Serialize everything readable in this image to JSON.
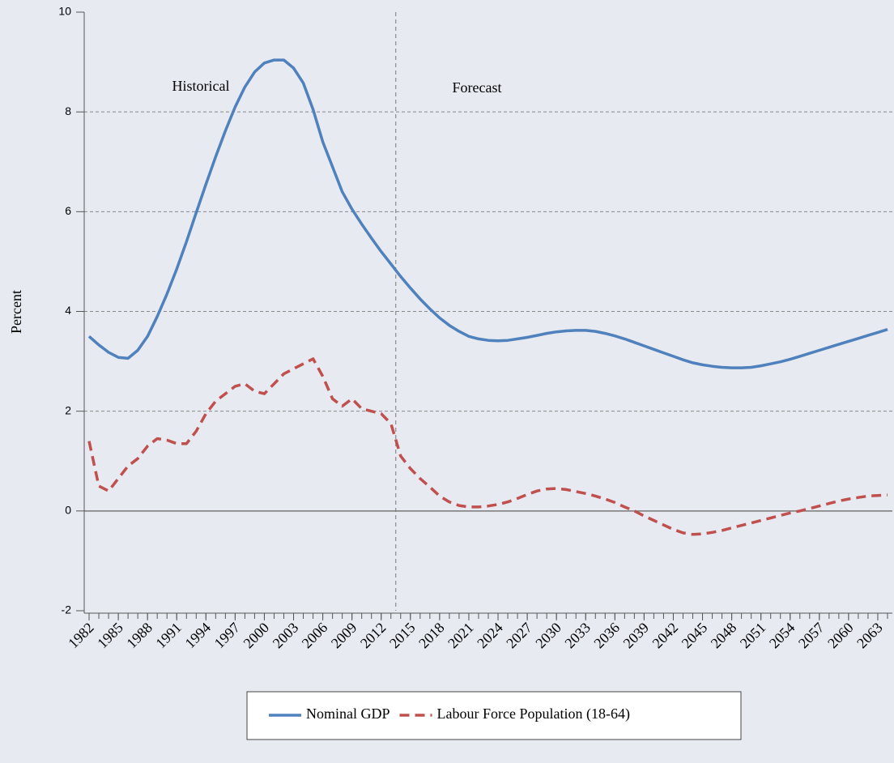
{
  "chart_data": {
    "type": "line",
    "y_label": "Percent",
    "annotations": [
      "Historical",
      "Forecast"
    ],
    "forecast_divider": 2013.5,
    "x": [
      1982,
      1983,
      1984,
      1985,
      1986,
      1987,
      1988,
      1989,
      1990,
      1991,
      1992,
      1993,
      1994,
      1995,
      1996,
      1997,
      1998,
      1999,
      2000,
      2001,
      2002,
      2003,
      2004,
      2005,
      2006,
      2007,
      2008,
      2009,
      2010,
      2011,
      2012,
      2013,
      2014,
      2015,
      2016,
      2017,
      2018,
      2019,
      2020,
      2021,
      2022,
      2023,
      2024,
      2025,
      2026,
      2027,
      2028,
      2029,
      2030,
      2031,
      2032,
      2033,
      2034,
      2035,
      2036,
      2037,
      2038,
      2039,
      2040,
      2041,
      2042,
      2043,
      2044,
      2045,
      2046,
      2047,
      2048,
      2049,
      2050,
      2051,
      2052,
      2053,
      2054,
      2055,
      2056,
      2057,
      2058,
      2059,
      2060,
      2061,
      2062,
      2063,
      2064
    ],
    "series": [
      {
        "name": "Nominal GDP",
        "color": "#4f81bd",
        "dash": false,
        "values": [
          3.5,
          3.33,
          3.18,
          3.08,
          3.06,
          3.22,
          3.5,
          3.9,
          4.35,
          4.85,
          5.4,
          5.98,
          6.55,
          7.1,
          7.62,
          8.1,
          8.5,
          8.8,
          8.98,
          9.04,
          9.04,
          8.88,
          8.58,
          8.05,
          7.4,
          6.9,
          6.4,
          6.05,
          5.75,
          5.47,
          5.2,
          4.95,
          4.7,
          4.47,
          4.25,
          4.05,
          3.87,
          3.72,
          3.6,
          3.5,
          3.45,
          3.42,
          3.41,
          3.42,
          3.45,
          3.48,
          3.52,
          3.56,
          3.59,
          3.61,
          3.62,
          3.62,
          3.6,
          3.56,
          3.51,
          3.45,
          3.38,
          3.31,
          3.24,
          3.17,
          3.1,
          3.03,
          2.97,
          2.93,
          2.9,
          2.88,
          2.87,
          2.87,
          2.88,
          2.91,
          2.95,
          2.99,
          3.04,
          3.1,
          3.16,
          3.22,
          3.28,
          3.34,
          3.4,
          3.46,
          3.52,
          3.58,
          3.64
        ]
      },
      {
        "name": "Labour Force Population (18-64)",
        "color": "#c0504d",
        "dash": true,
        "values": [
          1.4,
          0.5,
          0.4,
          0.65,
          0.9,
          1.05,
          1.3,
          1.45,
          1.42,
          1.35,
          1.35,
          1.6,
          1.95,
          2.2,
          2.35,
          2.5,
          2.55,
          2.4,
          2.35,
          2.55,
          2.75,
          2.85,
          2.95,
          3.05,
          2.7,
          2.25,
          2.1,
          2.25,
          2.05,
          2.0,
          1.95,
          1.75,
          1.1,
          0.85,
          0.65,
          0.48,
          0.3,
          0.18,
          0.11,
          0.08,
          0.08,
          0.1,
          0.13,
          0.18,
          0.25,
          0.33,
          0.4,
          0.44,
          0.45,
          0.43,
          0.39,
          0.35,
          0.3,
          0.24,
          0.17,
          0.08,
          0.0,
          -0.1,
          -0.19,
          -0.28,
          -0.37,
          -0.44,
          -0.47,
          -0.46,
          -0.43,
          -0.39,
          -0.34,
          -0.29,
          -0.24,
          -0.19,
          -0.14,
          -0.09,
          -0.04,
          0.0,
          0.05,
          0.1,
          0.15,
          0.2,
          0.24,
          0.27,
          0.3,
          0.31,
          0.32
        ]
      }
    ],
    "xlim": [
      1981.5,
      2064.5
    ],
    "xticks": [
      1982,
      1985,
      1988,
      1991,
      1994,
      1997,
      2000,
      2003,
      2006,
      2009,
      2012,
      2015,
      2018,
      2021,
      2024,
      2027,
      2030,
      2033,
      2036,
      2039,
      2042,
      2045,
      2048,
      2051,
      2054,
      2057,
      2060,
      2063
    ],
    "ylim": [
      -2,
      10
    ],
    "yticks": [
      -2,
      0,
      2,
      4,
      6,
      8,
      10
    ],
    "grid": true,
    "legend": "bottom"
  }
}
